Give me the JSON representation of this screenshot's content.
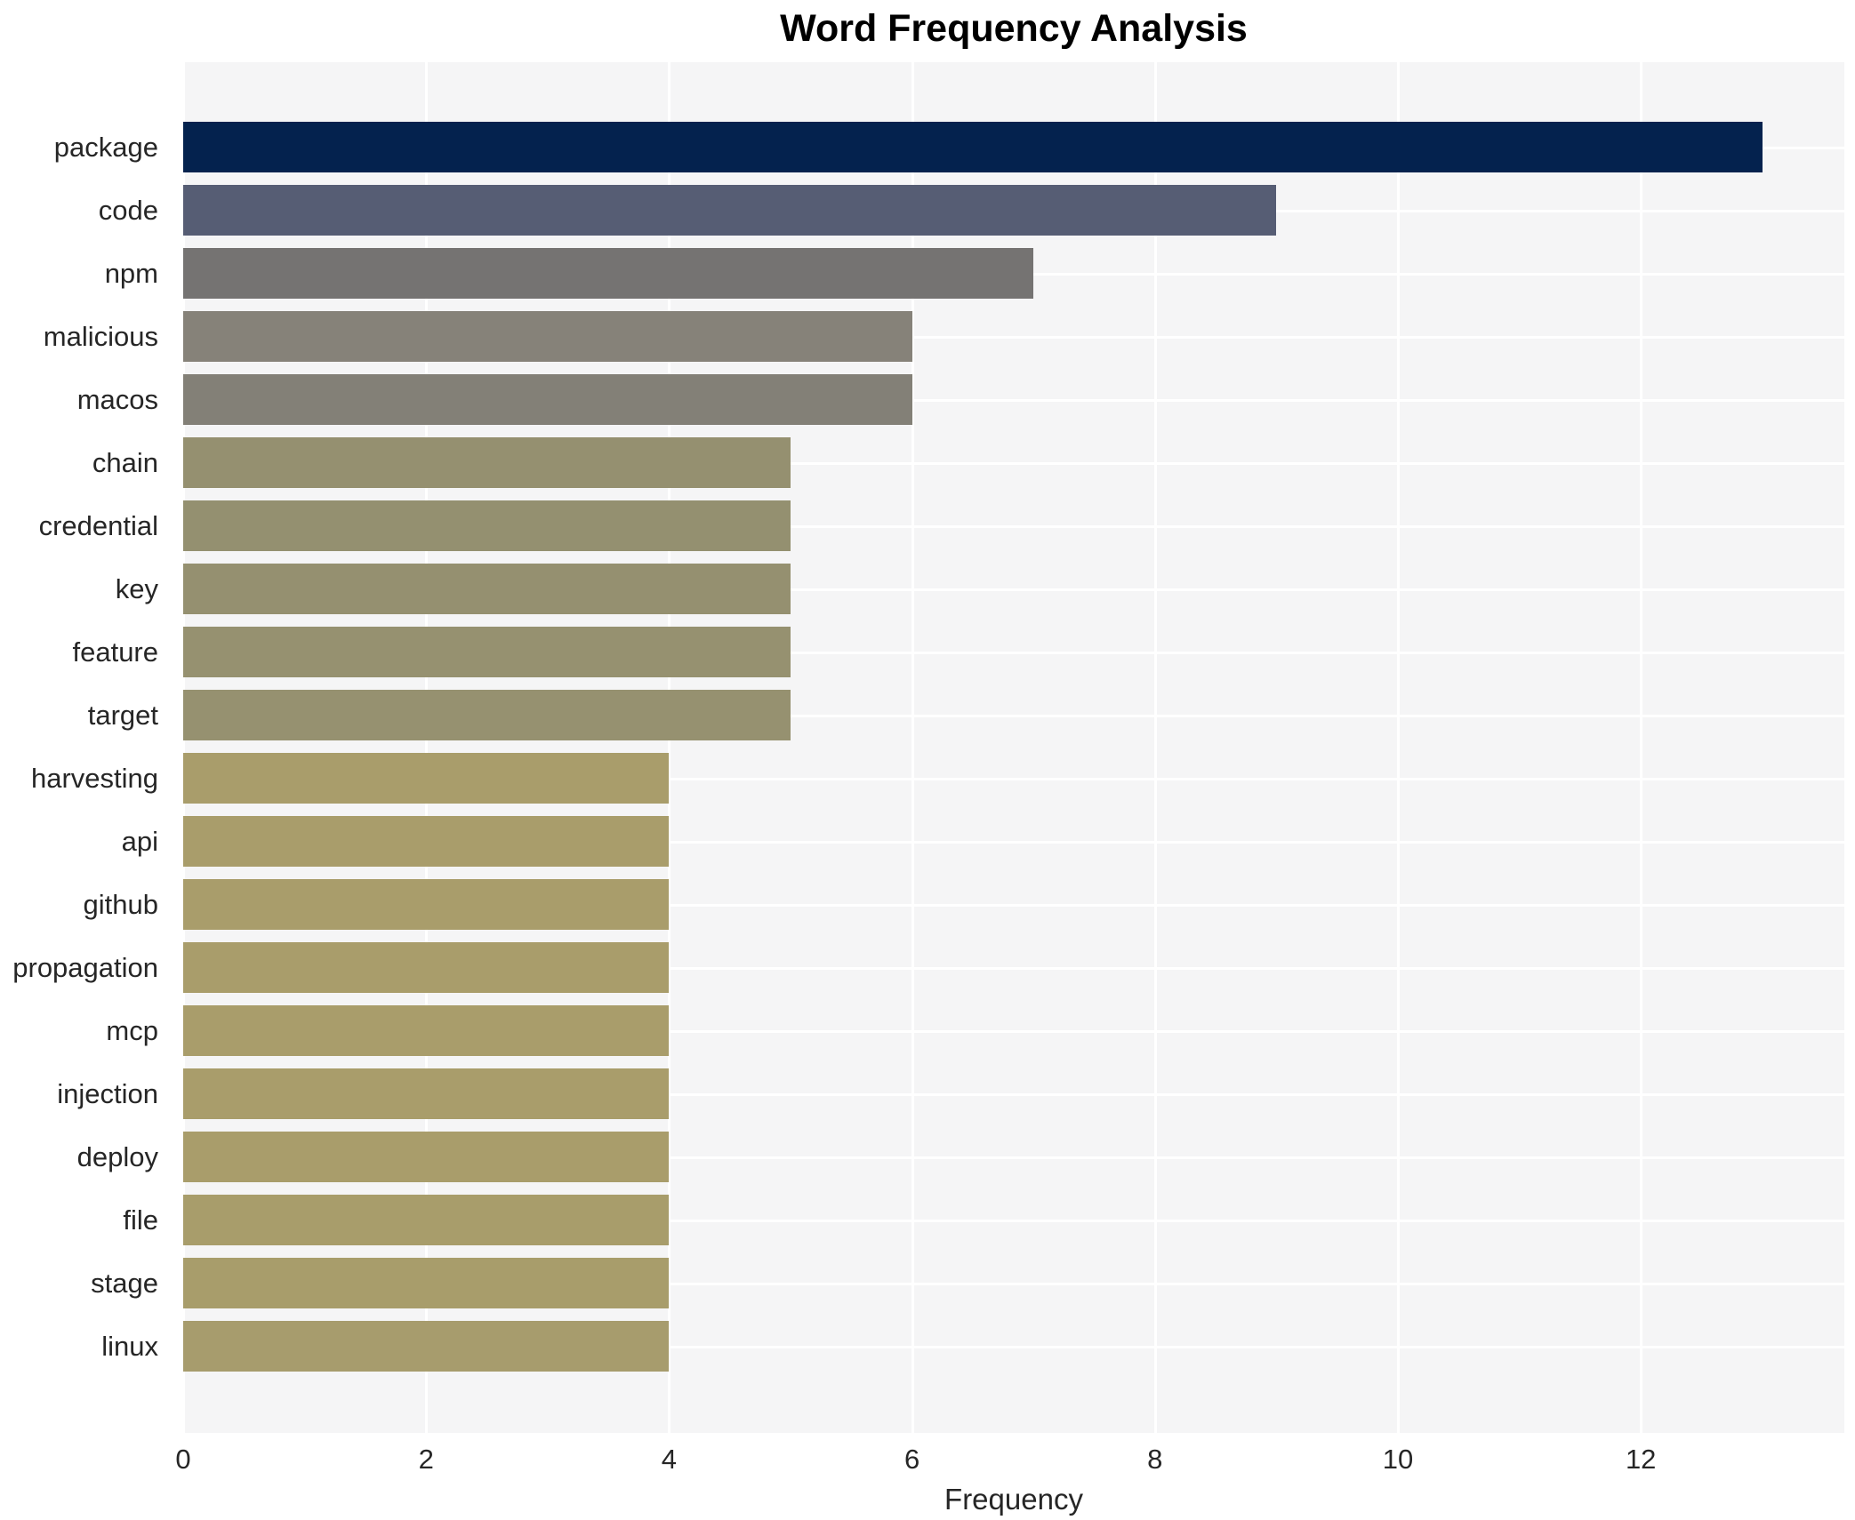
{
  "colors": {
    "page_bg": "#ffffff",
    "panel_bg": "#f5f5f6",
    "grid": "#ffffff",
    "text": "#262626",
    "title_text": "#000000"
  },
  "chart_data": {
    "type": "bar",
    "orientation": "horizontal",
    "title": "Word Frequency Analysis",
    "xlabel": "Frequency",
    "ylabel": "",
    "legend": "none",
    "grid": "on (white gridlines over light gray panel)",
    "xlim": [
      0,
      13.675
    ],
    "x_ticks": [
      0,
      2,
      4,
      6,
      8,
      10,
      12
    ],
    "categories": [
      "package",
      "code",
      "npm",
      "malicious",
      "macos",
      "chain",
      "credential",
      "key",
      "feature",
      "target",
      "harvesting",
      "api",
      "github",
      "propagation",
      "mcp",
      "injection",
      "deploy",
      "file",
      "stage",
      "linux"
    ],
    "values": [
      13,
      9,
      7,
      6,
      6,
      5,
      5,
      5,
      5,
      5,
      4,
      4,
      4,
      4,
      4,
      4,
      4,
      4,
      4,
      4
    ],
    "bar_colors": [
      "#04224e",
      "#565d74",
      "#757372",
      "#868279",
      "#838077",
      "#959070",
      "#949070",
      "#959070",
      "#969170",
      "#969170",
      "#a99d6b",
      "#a99d6b",
      "#a99d6b",
      "#a99d6b",
      "#a99d6b",
      "#a99d6b",
      "#a99d6b",
      "#a89d6b",
      "#a89d6b",
      "#a79c6d"
    ]
  }
}
